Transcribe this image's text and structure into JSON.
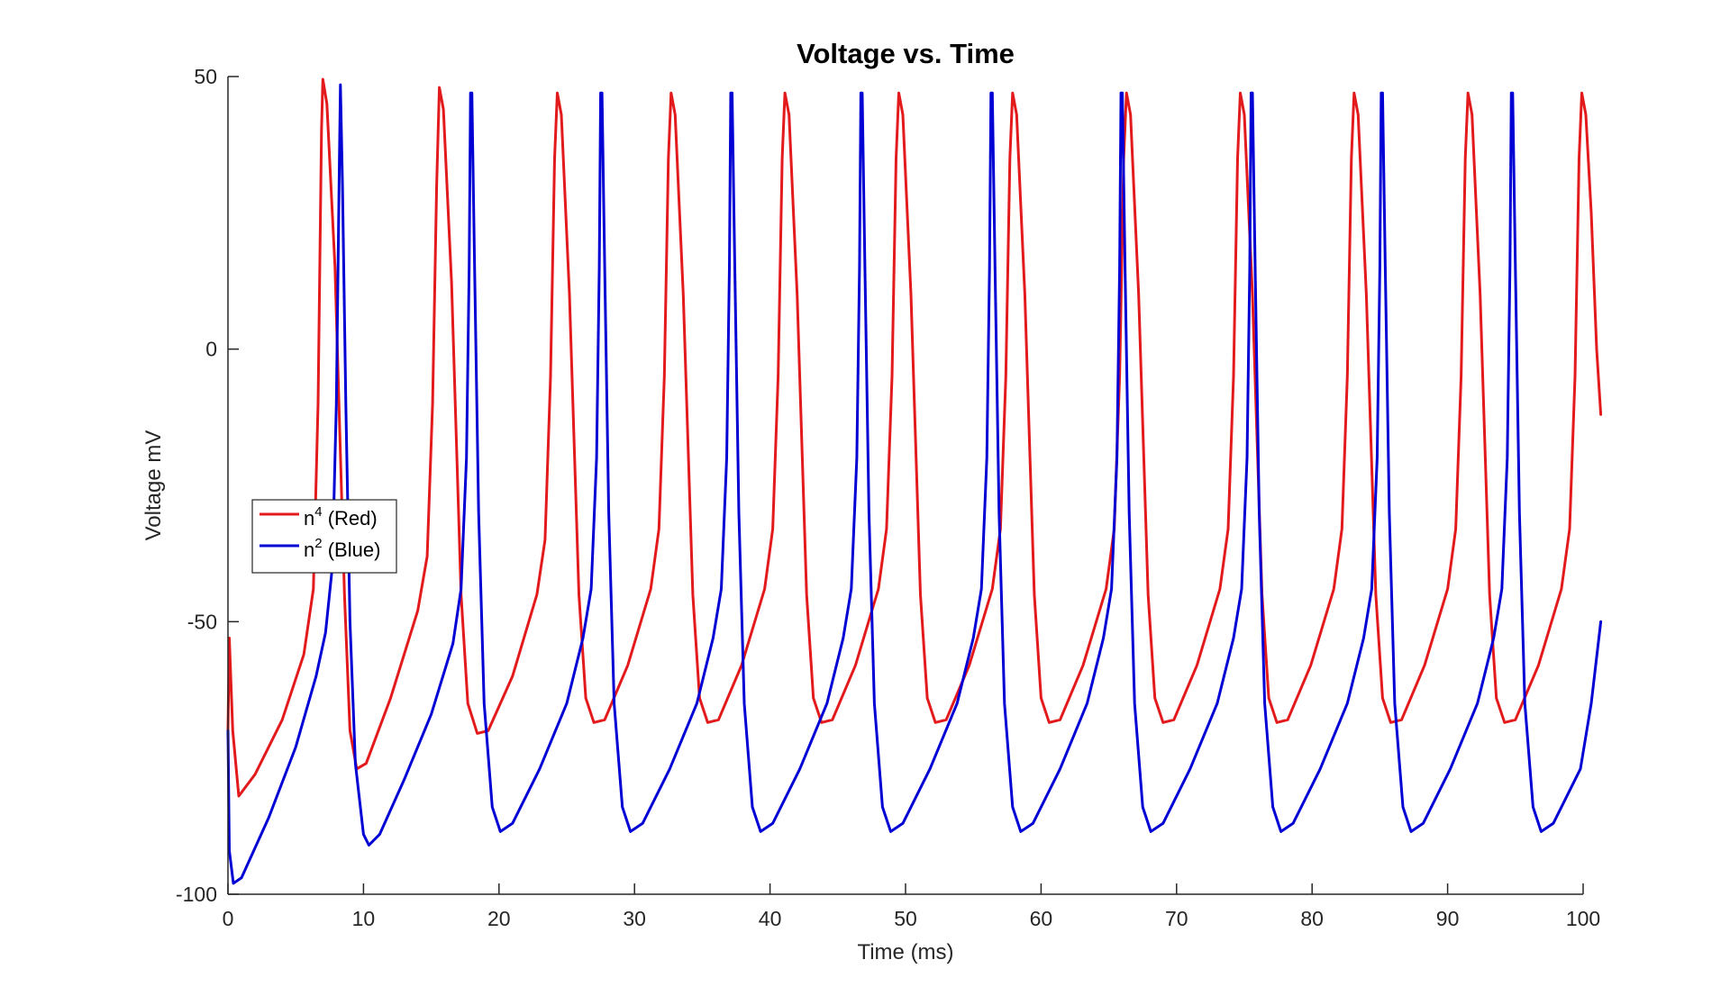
{
  "chart_data": {
    "type": "line",
    "title": "Voltage vs. Time",
    "xlabel": "Time (ms)",
    "ylabel": "Voltage mV",
    "xlim": [
      0,
      100
    ],
    "ylim": [
      -100,
      50
    ],
    "x_ticks": [
      0,
      10,
      20,
      30,
      40,
      50,
      60,
      70,
      80,
      90,
      100
    ],
    "y_ticks": [
      -100,
      -50,
      0,
      50
    ],
    "x_tick_labels": [
      "0",
      "10",
      "20",
      "30",
      "40",
      "50",
      "60",
      "70",
      "80",
      "90",
      "100"
    ],
    "y_tick_labels": [
      "-100",
      "-50",
      "0",
      "50"
    ],
    "grid": false,
    "legend_position": "west",
    "series": [
      {
        "name": "n4 (Red)",
        "legend_base": "n",
        "legend_sup": "4",
        "legend_suffix": " (Red)",
        "color": "#e31a1c",
        "points": [
          [
            0.0,
            -70
          ],
          [
            0.1,
            -53
          ],
          [
            0.35,
            -70
          ],
          [
            0.8,
            -82
          ],
          [
            2.0,
            -78
          ],
          [
            4.0,
            -68
          ],
          [
            5.6,
            -56
          ],
          [
            6.3,
            -44
          ],
          [
            6.65,
            -10
          ],
          [
            6.9,
            40
          ],
          [
            7.0,
            49.5
          ],
          [
            7.3,
            45
          ],
          [
            7.9,
            15
          ],
          [
            8.6,
            -45
          ],
          [
            9.0,
            -70
          ],
          [
            9.5,
            -77
          ],
          [
            10.2,
            -76
          ],
          [
            12.0,
            -64
          ],
          [
            14.0,
            -48
          ],
          [
            14.7,
            -38
          ],
          [
            15.1,
            -10
          ],
          [
            15.4,
            30
          ],
          [
            15.6,
            48
          ],
          [
            15.9,
            44
          ],
          [
            16.5,
            12
          ],
          [
            17.2,
            -45
          ],
          [
            17.7,
            -65
          ],
          [
            18.4,
            -70.5
          ],
          [
            19.2,
            -70
          ],
          [
            21.0,
            -60
          ],
          [
            22.8,
            -45
          ],
          [
            23.4,
            -35
          ],
          [
            23.8,
            -5
          ],
          [
            24.1,
            35
          ],
          [
            24.3,
            47
          ],
          [
            24.6,
            43
          ],
          [
            25.2,
            10
          ],
          [
            25.9,
            -45
          ],
          [
            26.4,
            -64
          ],
          [
            27.0,
            -68.5
          ],
          [
            27.8,
            -68
          ],
          [
            29.5,
            -58
          ],
          [
            31.2,
            -44
          ],
          [
            31.8,
            -33
          ],
          [
            32.2,
            -5
          ],
          [
            32.5,
            35
          ],
          [
            32.7,
            47
          ],
          [
            33.0,
            43
          ],
          [
            33.6,
            10
          ],
          [
            34.3,
            -45
          ],
          [
            34.8,
            -64
          ],
          [
            35.4,
            -68.5
          ],
          [
            36.2,
            -68
          ],
          [
            37.9,
            -58
          ],
          [
            39.6,
            -44
          ],
          [
            40.2,
            -33
          ],
          [
            40.6,
            -5
          ],
          [
            40.9,
            35
          ],
          [
            41.1,
            47
          ],
          [
            41.4,
            43
          ],
          [
            42.0,
            10
          ],
          [
            42.7,
            -45
          ],
          [
            43.2,
            -64
          ],
          [
            43.8,
            -68.5
          ],
          [
            44.6,
            -68
          ],
          [
            46.3,
            -58
          ],
          [
            48.0,
            -44
          ],
          [
            48.6,
            -33
          ],
          [
            49.0,
            -5
          ],
          [
            49.3,
            35
          ],
          [
            49.5,
            47
          ],
          [
            49.8,
            43
          ],
          [
            50.4,
            10
          ],
          [
            51.1,
            -45
          ],
          [
            51.6,
            -64
          ],
          [
            52.2,
            -68.5
          ],
          [
            53.0,
            -68
          ],
          [
            54.7,
            -58
          ],
          [
            56.4,
            -44
          ],
          [
            57.0,
            -33
          ],
          [
            57.4,
            -5
          ],
          [
            57.7,
            35
          ],
          [
            57.9,
            47
          ],
          [
            58.2,
            43
          ],
          [
            58.8,
            10
          ],
          [
            59.5,
            -45
          ],
          [
            60.0,
            -64
          ],
          [
            60.6,
            -68.5
          ],
          [
            61.4,
            -68
          ],
          [
            63.1,
            -58
          ],
          [
            64.8,
            -44
          ],
          [
            65.4,
            -33
          ],
          [
            65.8,
            -5
          ],
          [
            66.1,
            35
          ],
          [
            66.3,
            47
          ],
          [
            66.6,
            43
          ],
          [
            67.2,
            10
          ],
          [
            67.9,
            -45
          ],
          [
            68.4,
            -64
          ],
          [
            69.0,
            -68.5
          ],
          [
            69.8,
            -68
          ],
          [
            71.5,
            -58
          ],
          [
            73.2,
            -44
          ],
          [
            73.8,
            -33
          ],
          [
            74.2,
            -5
          ],
          [
            74.5,
            35
          ],
          [
            74.7,
            47
          ],
          [
            75.0,
            43
          ],
          [
            75.6,
            10
          ],
          [
            76.3,
            -45
          ],
          [
            76.8,
            -64
          ],
          [
            77.4,
            -68.5
          ],
          [
            78.2,
            -68
          ],
          [
            79.9,
            -58
          ],
          [
            81.6,
            -44
          ],
          [
            82.2,
            -33
          ],
          [
            82.6,
            -5
          ],
          [
            82.9,
            35
          ],
          [
            83.1,
            47
          ],
          [
            83.4,
            43
          ],
          [
            84.0,
            10
          ],
          [
            84.7,
            -45
          ],
          [
            85.2,
            -64
          ],
          [
            85.8,
            -68.5
          ],
          [
            86.6,
            -68
          ],
          [
            88.3,
            -58
          ],
          [
            90.0,
            -44
          ],
          [
            90.6,
            -33
          ],
          [
            91.0,
            -5
          ],
          [
            91.3,
            35
          ],
          [
            91.5,
            47
          ],
          [
            91.8,
            43
          ],
          [
            92.4,
            10
          ],
          [
            93.1,
            -45
          ],
          [
            93.6,
            -64
          ],
          [
            94.2,
            -68.5
          ],
          [
            95.0,
            -68
          ],
          [
            96.7,
            -58
          ],
          [
            98.4,
            -44
          ],
          [
            99.0,
            -33
          ],
          [
            99.4,
            -5
          ],
          [
            99.7,
            35
          ],
          [
            99.9,
            47
          ],
          [
            100.2,
            43
          ],
          [
            100.6,
            25
          ],
          [
            101.0,
            0
          ],
          [
            101.3,
            -12
          ]
        ]
      },
      {
        "name": "n2 (Blue)",
        "legend_base": "n",
        "legend_sup": "2",
        "legend_suffix": " (Blue)",
        "color": "#0000d4",
        "points": [
          [
            0.0,
            -70
          ],
          [
            0.1,
            -92
          ],
          [
            0.4,
            -98
          ],
          [
            1.0,
            -97
          ],
          [
            3.0,
            -86
          ],
          [
            5.0,
            -73
          ],
          [
            6.5,
            -60
          ],
          [
            7.2,
            -52
          ],
          [
            7.7,
            -40
          ],
          [
            8.0,
            -10
          ],
          [
            8.2,
            30
          ],
          [
            8.3,
            48.5
          ],
          [
            8.45,
            30
          ],
          [
            8.7,
            -10
          ],
          [
            9.0,
            -50
          ],
          [
            9.4,
            -76
          ],
          [
            10.0,
            -89
          ],
          [
            10.4,
            -91
          ],
          [
            11.2,
            -89
          ],
          [
            13.0,
            -79
          ],
          [
            15.0,
            -67
          ],
          [
            16.6,
            -54
          ],
          [
            17.2,
            -44
          ],
          [
            17.6,
            -20
          ],
          [
            17.8,
            15
          ],
          [
            17.9,
            47
          ],
          [
            18.0,
            47
          ],
          [
            18.2,
            15
          ],
          [
            18.5,
            -30
          ],
          [
            18.9,
            -65
          ],
          [
            19.5,
            -84
          ],
          [
            20.1,
            -88.5
          ],
          [
            21.0,
            -87
          ],
          [
            23.0,
            -77
          ],
          [
            25.0,
            -65
          ],
          [
            26.2,
            -53
          ],
          [
            26.8,
            -44
          ],
          [
            27.2,
            -20
          ],
          [
            27.4,
            15
          ],
          [
            27.5,
            47
          ],
          [
            27.6,
            47
          ],
          [
            27.8,
            15
          ],
          [
            28.1,
            -30
          ],
          [
            28.5,
            -65
          ],
          [
            29.1,
            -84
          ],
          [
            29.7,
            -88.5
          ],
          [
            30.6,
            -87
          ],
          [
            32.6,
            -77
          ],
          [
            34.6,
            -65
          ],
          [
            35.8,
            -53
          ],
          [
            36.4,
            -44
          ],
          [
            36.8,
            -20
          ],
          [
            37.0,
            15
          ],
          [
            37.1,
            47
          ],
          [
            37.2,
            47
          ],
          [
            37.4,
            15
          ],
          [
            37.7,
            -30
          ],
          [
            38.1,
            -65
          ],
          [
            38.7,
            -84
          ],
          [
            39.3,
            -88.5
          ],
          [
            40.2,
            -87
          ],
          [
            42.2,
            -77
          ],
          [
            44.2,
            -65
          ],
          [
            45.4,
            -53
          ],
          [
            46.0,
            -44
          ],
          [
            46.4,
            -20
          ],
          [
            46.6,
            15
          ],
          [
            46.7,
            47
          ],
          [
            46.8,
            47
          ],
          [
            47.0,
            15
          ],
          [
            47.3,
            -30
          ],
          [
            47.7,
            -65
          ],
          [
            48.3,
            -84
          ],
          [
            48.9,
            -88.5
          ],
          [
            49.8,
            -87
          ],
          [
            51.8,
            -77
          ],
          [
            53.8,
            -65
          ],
          [
            55.0,
            -53
          ],
          [
            55.6,
            -44
          ],
          [
            56.0,
            -20
          ],
          [
            56.2,
            15
          ],
          [
            56.3,
            47
          ],
          [
            56.4,
            47
          ],
          [
            56.6,
            15
          ],
          [
            56.9,
            -30
          ],
          [
            57.3,
            -65
          ],
          [
            57.9,
            -84
          ],
          [
            58.5,
            -88.5
          ],
          [
            59.4,
            -87
          ],
          [
            61.4,
            -77
          ],
          [
            63.4,
            -65
          ],
          [
            64.6,
            -53
          ],
          [
            65.2,
            -44
          ],
          [
            65.6,
            -20
          ],
          [
            65.8,
            15
          ],
          [
            65.9,
            47
          ],
          [
            66.0,
            47
          ],
          [
            66.2,
            15
          ],
          [
            66.5,
            -30
          ],
          [
            66.9,
            -65
          ],
          [
            67.5,
            -84
          ],
          [
            68.1,
            -88.5
          ],
          [
            69.0,
            -87
          ],
          [
            71.0,
            -77
          ],
          [
            73.0,
            -65
          ],
          [
            74.2,
            -53
          ],
          [
            74.8,
            -44
          ],
          [
            75.2,
            -20
          ],
          [
            75.4,
            15
          ],
          [
            75.5,
            47
          ],
          [
            75.6,
            47
          ],
          [
            75.8,
            15
          ],
          [
            76.1,
            -30
          ],
          [
            76.5,
            -65
          ],
          [
            77.1,
            -84
          ],
          [
            77.7,
            -88.5
          ],
          [
            78.6,
            -87
          ],
          [
            80.6,
            -77
          ],
          [
            82.6,
            -65
          ],
          [
            83.8,
            -53
          ],
          [
            84.4,
            -44
          ],
          [
            84.8,
            -20
          ],
          [
            85.0,
            15
          ],
          [
            85.1,
            47
          ],
          [
            85.2,
            47
          ],
          [
            85.4,
            15
          ],
          [
            85.7,
            -30
          ],
          [
            86.1,
            -65
          ],
          [
            86.7,
            -84
          ],
          [
            87.3,
            -88.5
          ],
          [
            88.2,
            -87
          ],
          [
            90.2,
            -77
          ],
          [
            92.2,
            -65
          ],
          [
            93.4,
            -53
          ],
          [
            94.0,
            -44
          ],
          [
            94.4,
            -20
          ],
          [
            94.6,
            15
          ],
          [
            94.7,
            47
          ],
          [
            94.8,
            47
          ],
          [
            95.0,
            15
          ],
          [
            95.3,
            -30
          ],
          [
            95.7,
            -65
          ],
          [
            96.3,
            -84
          ],
          [
            96.9,
            -88.5
          ],
          [
            97.8,
            -87
          ],
          [
            99.8,
            -77
          ],
          [
            100.6,
            -65
          ],
          [
            101.3,
            -50
          ]
        ]
      }
    ]
  }
}
